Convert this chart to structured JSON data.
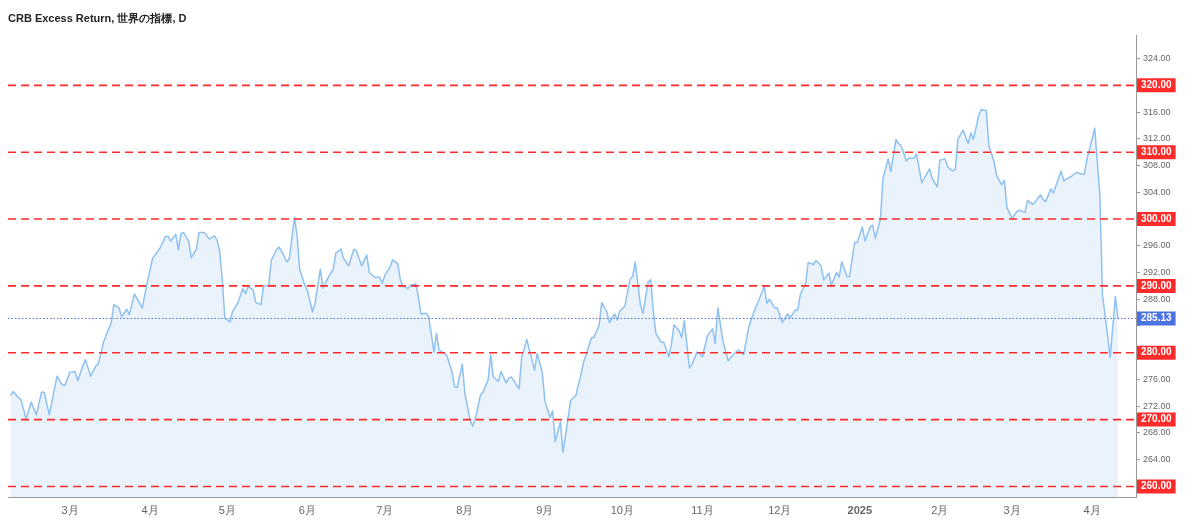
{
  "chart_data": {
    "type": "area",
    "title": "CRB Excess Return, 世界の指標, D",
    "marker": "none",
    "x": [
      "2024-02-07",
      "2024-02-08",
      "2024-02-10",
      "2024-02-11",
      "2024-02-13",
      "2024-02-15",
      "2024-02-17",
      "2024-02-19",
      "2024-02-20",
      "2024-02-22",
      "2024-02-25",
      "2024-02-27",
      "2024-02-28",
      "2024-03-01",
      "2024-03-03",
      "2024-03-04",
      "2024-03-06",
      "2024-03-07",
      "2024-03-09",
      "2024-03-11",
      "2024-03-12",
      "2024-03-14",
      "2024-03-17",
      "2024-03-18",
      "2024-03-20",
      "2024-03-21",
      "2024-03-23",
      "2024-03-24",
      "2024-03-26",
      "2024-03-29",
      "2024-03-31",
      "2024-04-02",
      "2024-04-05",
      "2024-04-07",
      "2024-04-08",
      "2024-04-09",
      "2024-04-11",
      "2024-04-12",
      "2024-04-13",
      "2024-04-14",
      "2024-04-16",
      "2024-04-17",
      "2024-04-19",
      "2024-04-20",
      "2024-04-22",
      "2024-04-24",
      "2024-04-26",
      "2024-04-27",
      "2024-04-28",
      "2024-04-29",
      "2024-04-30",
      "2024-05-02",
      "2024-05-03",
      "2024-05-05",
      "2024-05-07",
      "2024-05-08",
      "2024-05-09",
      "2024-05-11",
      "2024-05-12",
      "2024-05-14",
      "2024-05-15",
      "2024-05-17",
      "2024-05-18",
      "2024-05-20",
      "2024-05-21",
      "2024-05-22",
      "2024-05-24",
      "2024-05-25",
      "2024-05-27",
      "2024-05-28",
      "2024-05-29",
      "2024-05-31",
      "2024-06-01",
      "2024-06-03",
      "2024-06-04",
      "2024-06-06",
      "2024-06-07",
      "2024-06-09",
      "2024-06-11",
      "2024-06-12",
      "2024-06-14",
      "2024-06-15",
      "2024-06-17",
      "2024-06-19",
      "2024-06-20",
      "2024-06-22",
      "2024-06-24",
      "2024-06-25",
      "2024-06-27",
      "2024-06-29",
      "2024-06-30",
      "2024-07-01",
      "2024-07-03",
      "2024-07-04",
      "2024-07-06",
      "2024-07-07",
      "2024-07-08",
      "2024-07-10",
      "2024-07-11",
      "2024-07-13",
      "2024-07-14",
      "2024-07-15",
      "2024-07-17",
      "2024-07-18",
      "2024-07-20",
      "2024-07-21",
      "2024-07-22",
      "2024-07-24",
      "2024-07-25",
      "2024-07-27",
      "2024-07-28",
      "2024-07-29",
      "2024-07-31",
      "2024-08-01",
      "2024-08-03",
      "2024-08-04",
      "2024-08-05",
      "2024-08-07",
      "2024-08-08",
      "2024-08-10",
      "2024-08-11",
      "2024-08-12",
      "2024-08-14",
      "2024-08-15",
      "2024-08-17",
      "2024-08-18",
      "2024-08-19",
      "2024-08-22",
      "2024-08-23",
      "2024-08-25",
      "2024-08-26",
      "2024-08-28",
      "2024-08-29",
      "2024-08-31",
      "2024-09-01",
      "2024-09-03",
      "2024-09-04",
      "2024-09-05",
      "2024-09-07",
      "2024-09-08",
      "2024-09-10",
      "2024-09-11",
      "2024-09-13",
      "2024-09-15",
      "2024-09-16",
      "2024-09-17",
      "2024-09-19",
      "2024-09-20",
      "2024-09-22",
      "2024-09-23",
      "2024-09-25",
      "2024-09-26",
      "2024-09-28",
      "2024-09-29",
      "2024-09-30",
      "2024-10-02",
      "2024-10-04",
      "2024-10-05",
      "2024-10-06",
      "2024-10-08",
      "2024-10-09",
      "2024-10-11",
      "2024-10-12",
      "2024-10-13",
      "2024-10-14",
      "2024-10-16",
      "2024-10-17",
      "2024-10-19",
      "2024-10-20",
      "2024-10-21",
      "2024-10-23",
      "2024-10-24",
      "2024-10-25",
      "2024-10-27",
      "2024-10-28",
      "2024-10-30",
      "2024-10-31",
      "2024-11-01",
      "2024-11-03",
      "2024-11-05",
      "2024-11-06",
      "2024-11-07",
      "2024-11-09",
      "2024-11-11",
      "2024-11-12",
      "2024-11-14",
      "2024-11-15",
      "2024-11-17",
      "2024-11-19",
      "2024-11-21",
      "2024-11-25",
      "2024-11-26",
      "2024-11-27",
      "2024-11-29",
      "2024-11-30",
      "2024-12-02",
      "2024-12-04",
      "2024-12-05",
      "2024-12-07",
      "2024-12-08",
      "2024-12-09",
      "2024-12-11",
      "2024-12-12",
      "2024-12-14",
      "2024-12-15",
      "2024-12-17",
      "2024-12-18",
      "2024-12-20",
      "2024-12-21",
      "2024-12-23",
      "2024-12-24",
      "2024-12-25",
      "2024-12-27",
      "2024-12-28",
      "2024-12-30",
      "2024-12-31",
      "2025-01-02",
      "2025-01-03",
      "2025-01-05",
      "2025-01-06",
      "2025-01-07",
      "2025-01-09",
      "2025-01-10",
      "2025-01-12",
      "2025-01-13",
      "2025-01-15",
      "2025-01-16",
      "2025-01-17",
      "2025-01-19",
      "2025-01-20",
      "2025-01-22",
      "2025-01-23",
      "2025-01-25",
      "2025-01-26",
      "2025-01-28",
      "2025-01-29",
      "2025-01-31",
      "2025-02-01",
      "2025-02-03",
      "2025-02-04",
      "2025-02-06",
      "2025-02-07",
      "2025-02-08",
      "2025-02-10",
      "2025-02-12",
      "2025-02-13",
      "2025-02-14",
      "2025-02-16",
      "2025-02-17",
      "2025-02-19",
      "2025-02-20",
      "2025-02-22",
      "2025-02-23",
      "2025-02-25",
      "2025-02-26",
      "2025-02-27",
      "2025-03-01",
      "2025-03-03",
      "2025-03-04",
      "2025-03-06",
      "2025-03-07",
      "2025-03-09",
      "2025-03-10",
      "2025-03-12",
      "2025-03-13",
      "2025-03-14",
      "2025-03-16",
      "2025-03-17",
      "2025-03-19",
      "2025-03-20",
      "2025-03-21",
      "2025-03-23",
      "2025-03-24",
      "2025-03-26",
      "2025-03-27",
      "2025-03-29",
      "2025-03-30",
      "2025-03-31",
      "2025-04-02",
      "2025-04-04",
      "2025-04-05",
      "2025-04-07",
      "2025-04-08",
      "2025-04-10",
      "2025-04-11"
    ],
    "series": [
      {
        "color": "#8fc1f0",
        "values": [
          273.6,
          274.2,
          273.3,
          273.0,
          270.1,
          272.6,
          270.7,
          274.1,
          274.1,
          270.7,
          276.5,
          275.2,
          275.1,
          277.1,
          277.2,
          275.8,
          278.0,
          279.0,
          276.5,
          278.0,
          278.3,
          281.6,
          284.5,
          287.2,
          286.7,
          285.4,
          286.5,
          285.7,
          288.8,
          286.7,
          290.6,
          294.1,
          295.7,
          297.4,
          297.4,
          296.7,
          297.7,
          295.4,
          297.8,
          298.0,
          296.7,
          294.2,
          295.5,
          298.0,
          298.0,
          297.0,
          297.5,
          296.8,
          295.2,
          291.0,
          285.2,
          284.6,
          286.2,
          287.4,
          289.6,
          288.8,
          289.9,
          289.4,
          287.5,
          287.2,
          290.0,
          290.0,
          293.8,
          295.4,
          295.8,
          295.2,
          293.6,
          294.1,
          300.3,
          297.4,
          292.5,
          290.1,
          289.3,
          286.1,
          287.5,
          292.5,
          289.7,
          291.2,
          292.5,
          294.9,
          295.5,
          294.1,
          293.0,
          295.5,
          295.2,
          293.0,
          294.6,
          292.0,
          291.3,
          291.3,
          290.4,
          291.6,
          292.8,
          293.9,
          293.3,
          290.9,
          290.0,
          289.6,
          290.1,
          290.3,
          288.3,
          285.8,
          285.9,
          285.4,
          280.1,
          282.9,
          280.4,
          279.9,
          279.6,
          277.2,
          274.9,
          274.8,
          278.3,
          273.9,
          270.0,
          269.0,
          270.0,
          273.6,
          274.1,
          275.9,
          279.7,
          276.4,
          275.7,
          277.2,
          275.5,
          276.2,
          276.4,
          274.6,
          279.3,
          282.0,
          280.4,
          277.4,
          279.9,
          277.0,
          272.8,
          270.3,
          271.3,
          266.7,
          269.7,
          265.1,
          270.3,
          272.9,
          273.6,
          276.8,
          278.6,
          279.7,
          282.2,
          282.3,
          284.1,
          287.5,
          286.1,
          284.5,
          285.8,
          284.9,
          286.2,
          287.0,
          291.0,
          291.4,
          293.6,
          287.2,
          285.9,
          290.6,
          290.9,
          286.2,
          282.9,
          281.6,
          281.6,
          279.4,
          281.2,
          284.2,
          283.3,
          282.3,
          284.8,
          277.7,
          278.3,
          280.1,
          279.9,
          279.4,
          282.6,
          283.6,
          281.4,
          286.7,
          281.7,
          278.8,
          279.3,
          280.1,
          280.4,
          279.7,
          283.9,
          286.1,
          289.9,
          287.4,
          288.0,
          286.7,
          286.7,
          284.5,
          285.8,
          285.2,
          286.4,
          286.4,
          288.8,
          290.3,
          293.5,
          293.2,
          293.8,
          293.0,
          290.9,
          291.9,
          290.1,
          292.0,
          291.3,
          293.6,
          291.4,
          291.4,
          296.5,
          296.5,
          298.8,
          296.7,
          298.8,
          299.1,
          297.1,
          300.0,
          306.1,
          309.0,
          307.1,
          311.9,
          311.3,
          311.0,
          308.7,
          309.1,
          309.1,
          309.7,
          305.4,
          306.1,
          307.5,
          306.1,
          304.8,
          308.8,
          309.0,
          307.8,
          307.2,
          307.4,
          311.9,
          313.3,
          311.3,
          312.9,
          311.9,
          315.4,
          316.4,
          316.2,
          311.0,
          308.6,
          306.5,
          305.1,
          305.8,
          301.7,
          300.1,
          301.2,
          301.3,
          301.0,
          302.8,
          302.2,
          302.6,
          303.6,
          302.9,
          302.6,
          304.5,
          303.9,
          306.1,
          307.2,
          305.7,
          306.2,
          306.4,
          307.0,
          306.8,
          306.7,
          309.0,
          310.4,
          313.6,
          303.6,
          288.7,
          282.6,
          279.3,
          288.4,
          285.13
        ]
      }
    ],
    "xlim": [
      "2024-02-06",
      "2025-04-18"
    ],
    "xticks": [
      {
        "value": "2024-03-01",
        "label": "3月"
      },
      {
        "value": "2024-04-01",
        "label": "4月"
      },
      {
        "value": "2024-05-01",
        "label": "5月"
      },
      {
        "value": "2024-06-01",
        "label": "6月"
      },
      {
        "value": "2024-07-01",
        "label": "7月"
      },
      {
        "value": "2024-08-01",
        "label": "8月"
      },
      {
        "value": "2024-09-01",
        "label": "9月"
      },
      {
        "value": "2024-10-01",
        "label": "10月"
      },
      {
        "value": "2024-11-01",
        "label": "11月"
      },
      {
        "value": "2024-12-01",
        "label": "12月"
      },
      {
        "value": "2025-01-01",
        "label": "2025"
      },
      {
        "value": "2025-02-01",
        "label": "2月"
      },
      {
        "value": "2025-03-01",
        "label": "3月"
      },
      {
        "value": "2025-04-01",
        "label": "4月"
      }
    ],
    "ylim": [
      258.3,
      327.5
    ],
    "yticks": [
      {
        "value": 264,
        "label": "264.00"
      },
      {
        "value": 268,
        "label": "268.00"
      },
      {
        "value": 272,
        "label": "272.00"
      },
      {
        "value": 276,
        "label": "276.00"
      },
      {
        "value": 284,
        "label": null
      },
      {
        "value": 288,
        "label": "288.00"
      },
      {
        "value": 292,
        "label": "292.00"
      },
      {
        "value": 296,
        "label": "296.00"
      },
      {
        "value": 304,
        "label": "304.00"
      },
      {
        "value": 308,
        "label": "308.00"
      },
      {
        "value": 312,
        "label": "312.00"
      },
      {
        "value": 316,
        "label": "316.00"
      },
      {
        "value": 324,
        "label": "324.00"
      }
    ],
    "ref_lines": [
      {
        "axis": "y",
        "value": 320,
        "label": "320.00",
        "color": "#ff2a2a",
        "line_style": "dashed"
      },
      {
        "axis": "y",
        "value": 310,
        "label": "310.00",
        "color": "#ff2a2a",
        "line_style": "dashed"
      },
      {
        "axis": "y",
        "value": 300,
        "label": "300.00",
        "color": "#ff2a2a",
        "line_style": "dashed"
      },
      {
        "axis": "y",
        "value": 290,
        "label": "290.00",
        "color": "#ff2a2a",
        "line_style": "dashed"
      },
      {
        "axis": "y",
        "value": 280,
        "label": "280.00",
        "color": "#ff2a2a",
        "line_style": "dashed"
      },
      {
        "axis": "y",
        "value": 270,
        "label": "270.00",
        "color": "#ff2a2a",
        "line_style": "dashed"
      },
      {
        "axis": "y",
        "value": 260,
        "label": "260.00",
        "color": "#ff2a2a",
        "line_style": "dashed"
      },
      {
        "axis": "y",
        "value": 285.13,
        "label": "285.13",
        "color": "#4a72e0",
        "line_style": "dotted"
      }
    ]
  }
}
